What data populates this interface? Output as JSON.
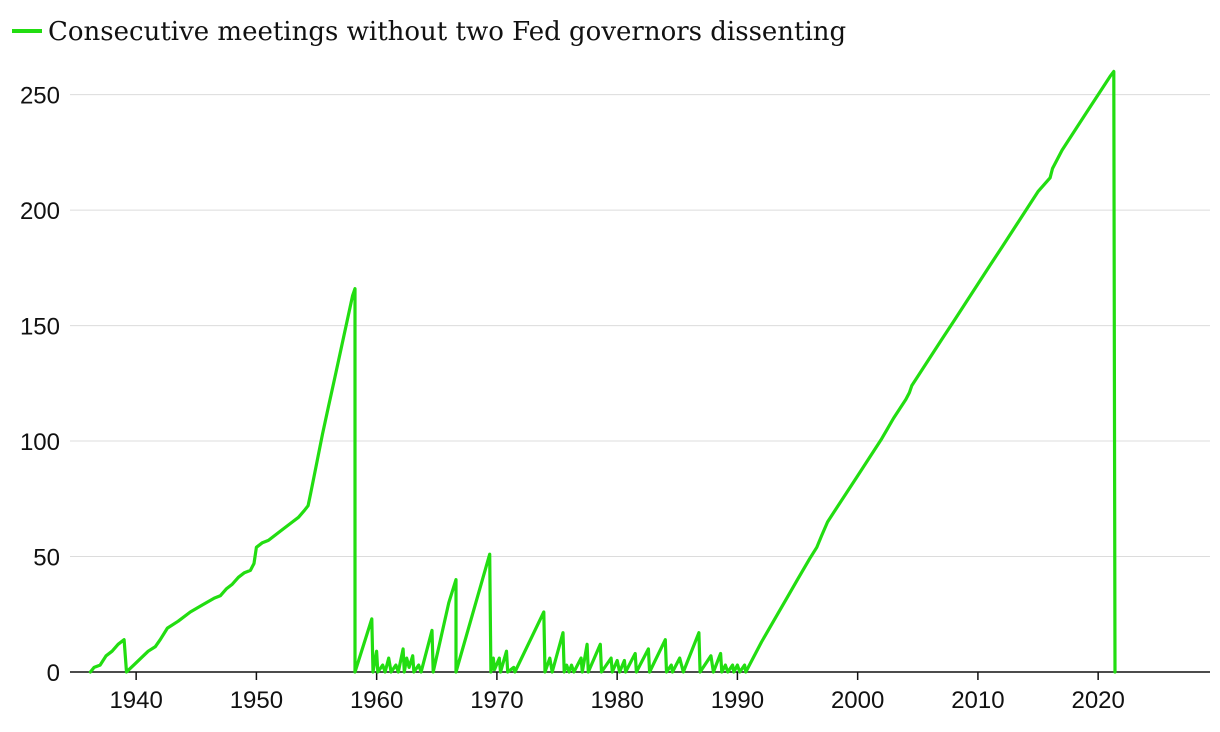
{
  "chart_data": {
    "type": "line",
    "title": "",
    "xlabel": "",
    "ylabel": "",
    "xlim": [
      1934.5,
      2029.3
    ],
    "ylim": [
      0,
      265
    ],
    "x_ticks": [
      1940,
      1950,
      1960,
      1970,
      1980,
      1990,
      2000,
      2010,
      2020
    ],
    "y_ticks": [
      0,
      50,
      100,
      150,
      200,
      250
    ],
    "grid": "horizontal",
    "legend_position": "top-left",
    "series": [
      {
        "name": "Consecutive meetings without two Fed governors dissenting",
        "color": "#22dd11",
        "points": [
          [
            1936.2,
            0
          ],
          [
            1936.5,
            2
          ],
          [
            1937.0,
            3
          ],
          [
            1937.5,
            7
          ],
          [
            1938.0,
            9
          ],
          [
            1938.5,
            12
          ],
          [
            1939.0,
            14
          ],
          [
            1939.2,
            0
          ],
          [
            1940.0,
            4
          ],
          [
            1941.0,
            9
          ],
          [
            1941.6,
            11
          ],
          [
            1942.0,
            14
          ],
          [
            1942.6,
            19
          ],
          [
            1943.5,
            22
          ],
          [
            1944.5,
            26
          ],
          [
            1945.5,
            29
          ],
          [
            1946.5,
            32
          ],
          [
            1947.0,
            33
          ],
          [
            1947.5,
            36
          ],
          [
            1948.0,
            38
          ],
          [
            1948.5,
            41
          ],
          [
            1949.0,
            43
          ],
          [
            1949.5,
            44
          ],
          [
            1949.8,
            47
          ],
          [
            1950.0,
            54
          ],
          [
            1950.5,
            56
          ],
          [
            1951.0,
            57
          ],
          [
            1952.0,
            61
          ],
          [
            1953.0,
            65
          ],
          [
            1953.5,
            67
          ],
          [
            1954.0,
            70
          ],
          [
            1954.3,
            72
          ],
          [
            1954.5,
            77
          ],
          [
            1955.0,
            90
          ],
          [
            1955.5,
            103
          ],
          [
            1956.0,
            115
          ],
          [
            1956.5,
            127
          ],
          [
            1957.0,
            139
          ],
          [
            1957.5,
            151
          ],
          [
            1958.0,
            163
          ],
          [
            1958.2,
            166
          ],
          [
            1958.2,
            0
          ],
          [
            1959.6,
            23
          ],
          [
            1959.7,
            0
          ],
          [
            1960.0,
            9
          ],
          [
            1960.1,
            0
          ],
          [
            1960.5,
            3
          ],
          [
            1960.7,
            0
          ],
          [
            1961.0,
            6
          ],
          [
            1961.2,
            0
          ],
          [
            1961.6,
            3
          ],
          [
            1961.8,
            0
          ],
          [
            1962.2,
            10
          ],
          [
            1962.3,
            0
          ],
          [
            1962.5,
            6
          ],
          [
            1962.7,
            2
          ],
          [
            1963.0,
            7
          ],
          [
            1963.1,
            0
          ],
          [
            1963.5,
            3
          ],
          [
            1963.7,
            0
          ],
          [
            1964.6,
            18
          ],
          [
            1964.7,
            0
          ],
          [
            1966.0,
            30
          ],
          [
            1966.6,
            40
          ],
          [
            1966.6,
            0
          ],
          [
            1969.4,
            51
          ],
          [
            1969.5,
            0
          ],
          [
            1969.7,
            6
          ],
          [
            1969.8,
            1
          ],
          [
            1970.2,
            6
          ],
          [
            1970.3,
            0
          ],
          [
            1970.8,
            9
          ],
          [
            1970.9,
            0
          ],
          [
            1971.4,
            2
          ],
          [
            1971.5,
            0
          ],
          [
            1973.9,
            26
          ],
          [
            1974.0,
            0
          ],
          [
            1974.4,
            6
          ],
          [
            1974.6,
            0
          ],
          [
            1975.5,
            17
          ],
          [
            1975.6,
            0
          ],
          [
            1975.8,
            3
          ],
          [
            1976.0,
            0
          ],
          [
            1976.2,
            3
          ],
          [
            1976.4,
            0
          ],
          [
            1977.0,
            6
          ],
          [
            1977.1,
            0
          ],
          [
            1977.5,
            12
          ],
          [
            1977.6,
            0
          ],
          [
            1978.6,
            12
          ],
          [
            1978.7,
            0
          ],
          [
            1979.5,
            6
          ],
          [
            1979.6,
            0
          ],
          [
            1980.0,
            5
          ],
          [
            1980.2,
            0
          ],
          [
            1980.6,
            5
          ],
          [
            1980.7,
            0
          ],
          [
            1981.5,
            8
          ],
          [
            1981.6,
            0
          ],
          [
            1982.6,
            10
          ],
          [
            1982.7,
            0
          ],
          [
            1984.0,
            14
          ],
          [
            1984.1,
            0
          ],
          [
            1984.5,
            3
          ],
          [
            1984.6,
            0
          ],
          [
            1985.2,
            6
          ],
          [
            1985.5,
            0
          ],
          [
            1986.8,
            17
          ],
          [
            1986.9,
            0
          ],
          [
            1987.8,
            7
          ],
          [
            1988.0,
            0
          ],
          [
            1988.6,
            8
          ],
          [
            1988.7,
            0
          ],
          [
            1989.0,
            3
          ],
          [
            1989.2,
            0
          ],
          [
            1989.6,
            3
          ],
          [
            1989.7,
            0
          ],
          [
            1990.0,
            3
          ],
          [
            1990.2,
            0
          ],
          [
            1990.6,
            3
          ],
          [
            1990.7,
            0
          ],
          [
            1992.0,
            13
          ],
          [
            1993.0,
            22
          ],
          [
            1994.0,
            31
          ],
          [
            1995.0,
            40
          ],
          [
            1996.0,
            49
          ],
          [
            1996.6,
            54
          ],
          [
            1997.0,
            59
          ],
          [
            1997.5,
            65
          ],
          [
            1998.0,
            69
          ],
          [
            1999.0,
            77
          ],
          [
            2000.0,
            85
          ],
          [
            2001.0,
            93
          ],
          [
            2002.0,
            101
          ],
          [
            2003.0,
            110
          ],
          [
            2004.0,
            118
          ],
          [
            2004.3,
            121
          ],
          [
            2004.5,
            124
          ],
          [
            2005.0,
            128
          ],
          [
            2006.0,
            136
          ],
          [
            2007.0,
            144
          ],
          [
            2008.0,
            152
          ],
          [
            2009.0,
            160
          ],
          [
            2010.0,
            168
          ],
          [
            2011.0,
            176
          ],
          [
            2012.0,
            184
          ],
          [
            2013.0,
            192
          ],
          [
            2014.0,
            200
          ],
          [
            2015.0,
            208
          ],
          [
            2016.0,
            214
          ],
          [
            2016.2,
            218
          ],
          [
            2017.0,
            226
          ],
          [
            2018.0,
            234
          ],
          [
            2019.0,
            242
          ],
          [
            2020.0,
            250
          ],
          [
            2021.0,
            258
          ],
          [
            2021.3,
            260
          ],
          [
            2021.4,
            0
          ]
        ]
      }
    ]
  }
}
